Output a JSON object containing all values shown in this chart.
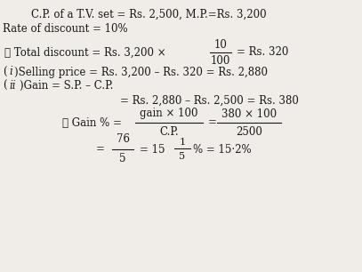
{
  "bg_color": "#f0ede8",
  "text_color": "#1a1a1a",
  "fs": 8.5,
  "line1": "C.P. of a T.V. set = Rs. 2,500, M.P.=Rs. 3,200",
  "line2": "Rate of discount = 10%",
  "therefore_left": "∴ Total discount = Rs. 3,200 ×",
  "frac1_num": "10",
  "frac1_den": "100",
  "total_disc_right": "= Rs. 320",
  "sell_open": "(",
  "sell_i": "i",
  "sell_close_rest": ")Selling price = Rs. 3,200 – Rs. 320 = Rs. 2,880",
  "gain_open": "(",
  "gain_ii": "ii",
  "gain_close_rest": ")Gain = S.P. – C.P.",
  "gain_rhs": "= Rs. 2,880 – Rs. 2,500 = Rs. 380",
  "gainpct_left": "∴ Gain % =",
  "gainpct_num1": "gain × 100",
  "gainpct_den1": "C.P.",
  "gainpct_eq": "=",
  "gainpct_num2": "380 × 100",
  "gainpct_den2": "2500",
  "final_eq": "=",
  "final_num": "76",
  "final_den": "5",
  "final_mid": "= 15",
  "final_frac_num": "1",
  "final_frac_den": "5",
  "final_end": "% = 15·2%"
}
